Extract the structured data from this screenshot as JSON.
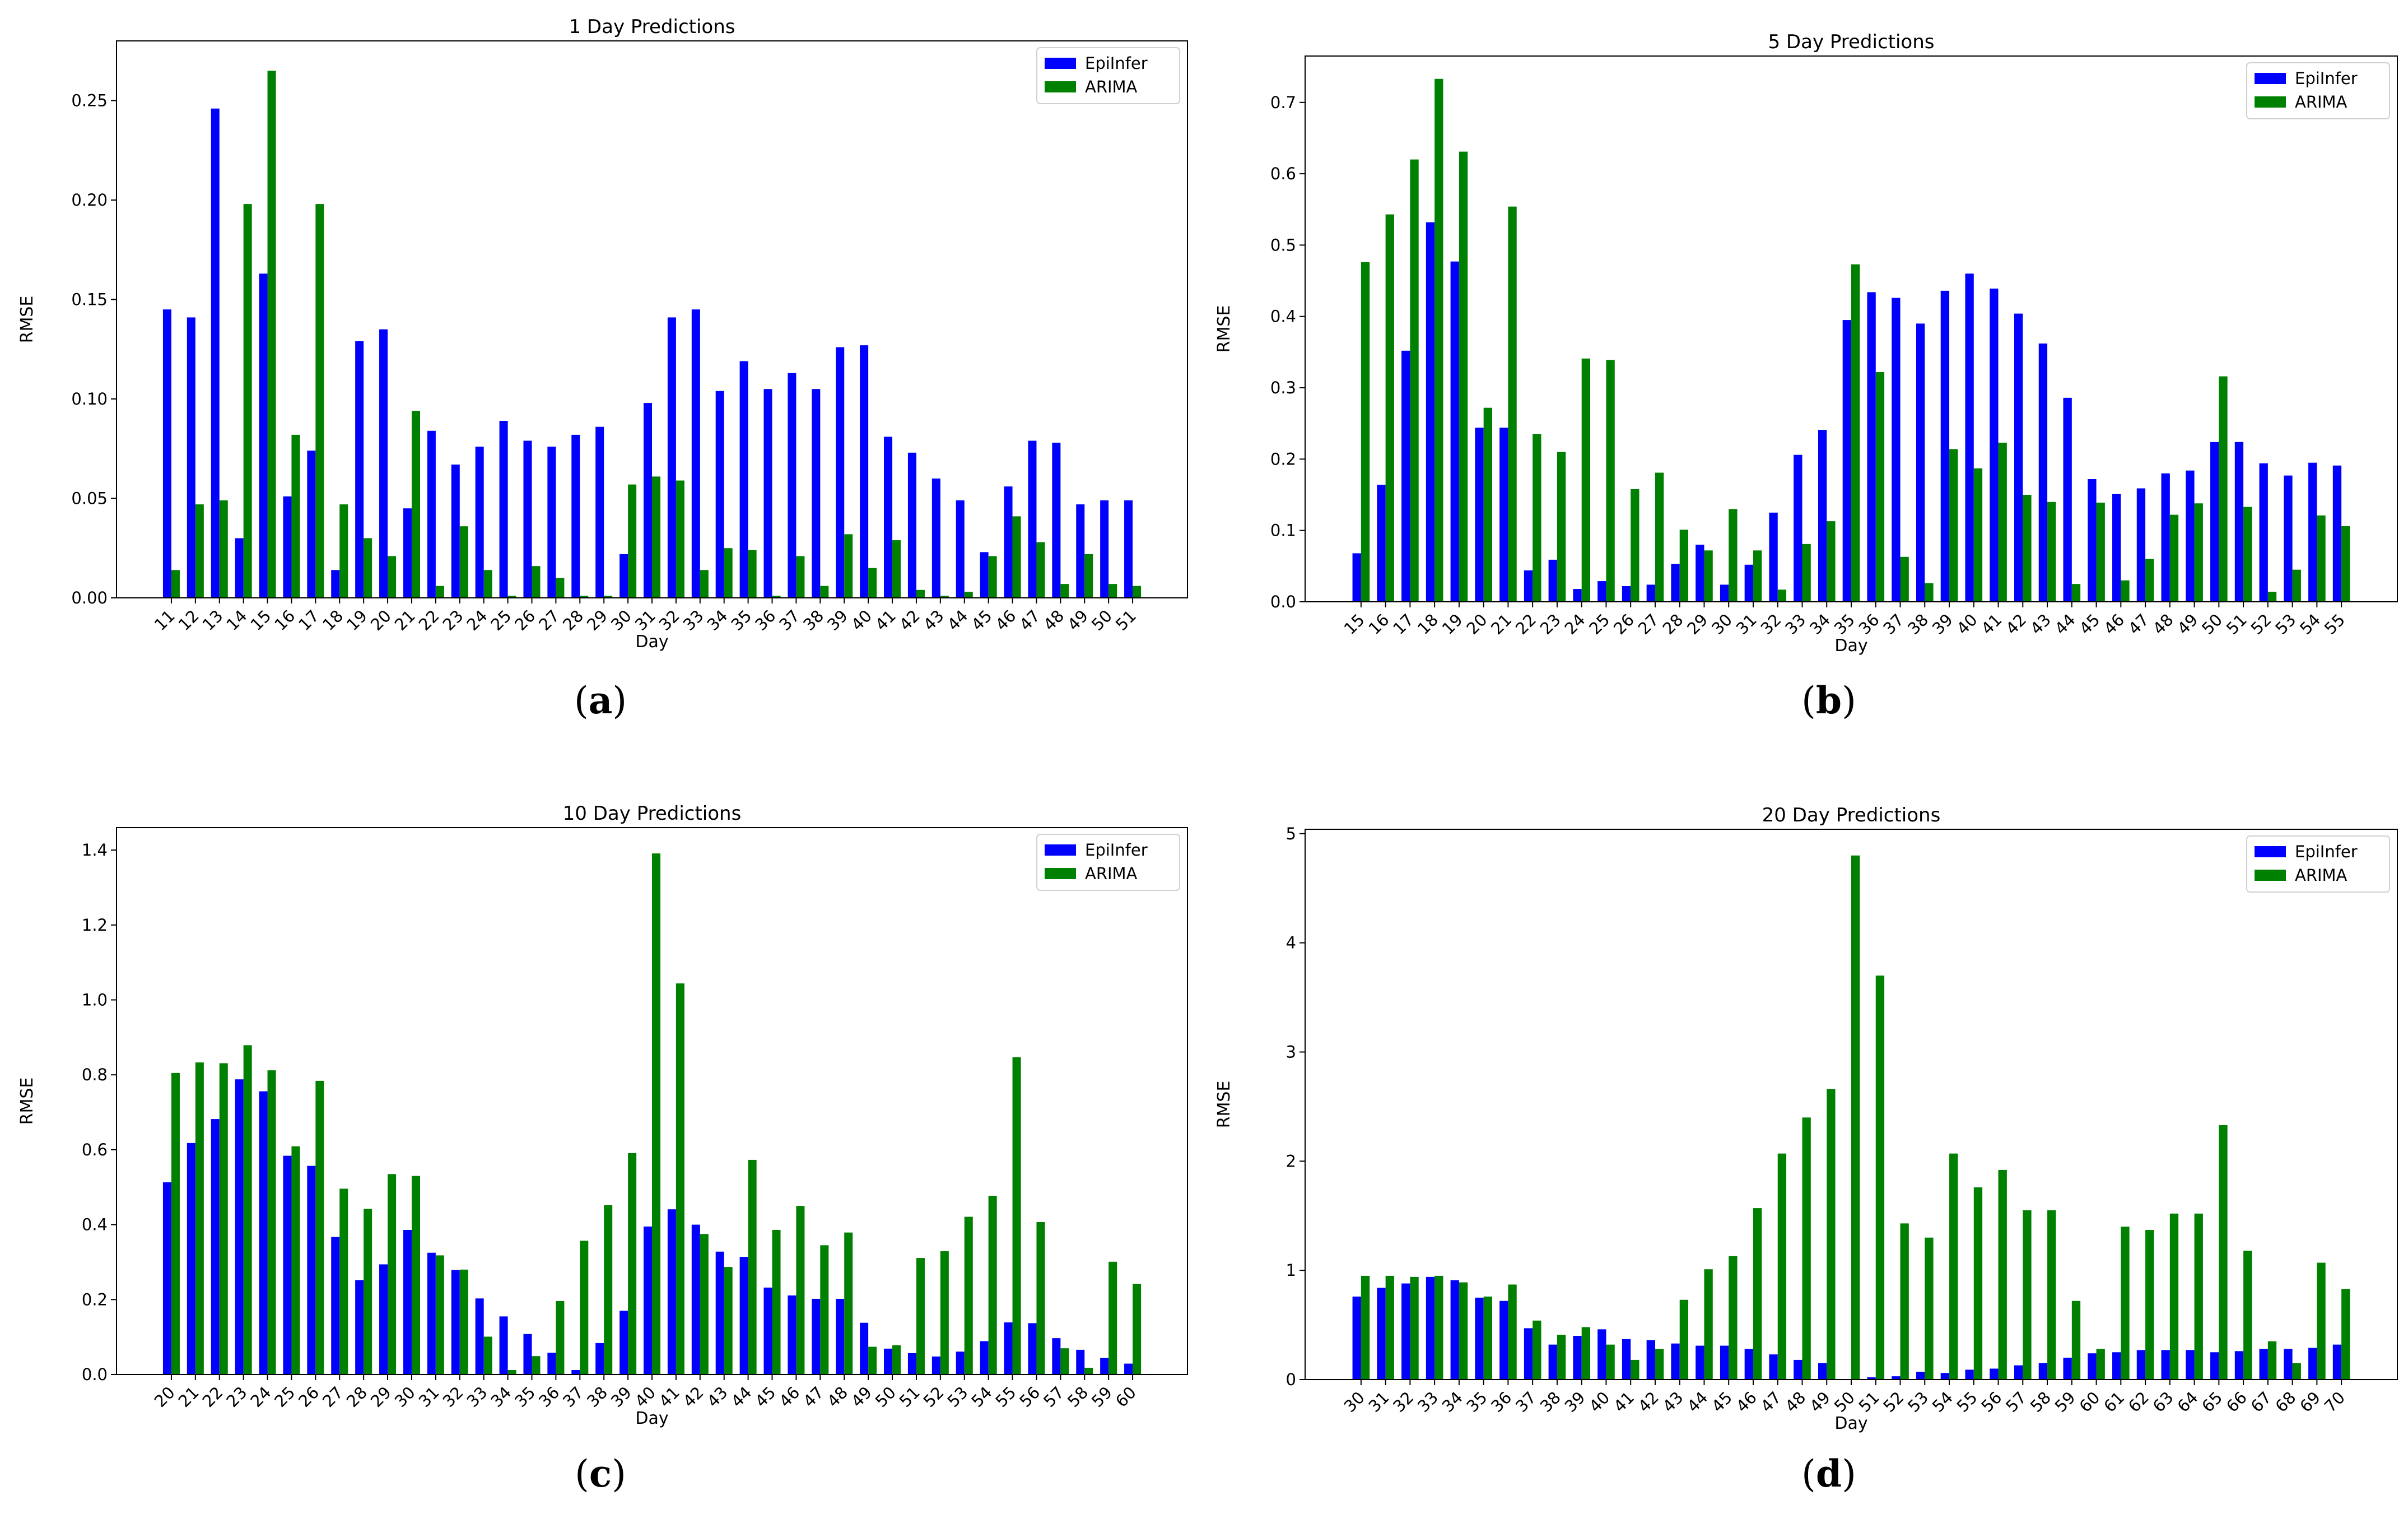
{
  "colors": {
    "epiinfer": "#0000ff",
    "arima": "#008000"
  },
  "chart_data": [
    {
      "type": "bar",
      "title": "1 Day Predictions",
      "xlabel": "Day",
      "ylabel": "RMSE",
      "ylim": [
        0,
        0.28
      ],
      "yticks": [
        "0.00",
        "0.05",
        "0.10",
        "0.15",
        "0.20",
        "0.25"
      ],
      "legend_position": "top-right",
      "subfigure_label": "a",
      "categories": [
        "11",
        "12",
        "13",
        "14",
        "15",
        "16",
        "17",
        "18",
        "19",
        "20",
        "21",
        "22",
        "23",
        "24",
        "25",
        "26",
        "27",
        "28",
        "29",
        "30",
        "31",
        "32",
        "33",
        "34",
        "35",
        "36",
        "37",
        "38",
        "39",
        "40",
        "41",
        "42",
        "43",
        "44",
        "45",
        "46",
        "47",
        "48",
        "49",
        "50",
        "51"
      ],
      "series": [
        {
          "name": "EpiInfer",
          "values": [
            0.145,
            0.141,
            0.246,
            0.03,
            0.163,
            0.051,
            0.074,
            0.014,
            0.129,
            0.135,
            0.045,
            0.084,
            0.067,
            0.076,
            0.089,
            0.079,
            0.076,
            0.082,
            0.086,
            0.022,
            0.098,
            0.141,
            0.145,
            0.104,
            0.119,
            0.105,
            0.113,
            0.105,
            0.126,
            0.127,
            0.081,
            0.073,
            0.06,
            0.049,
            0.023,
            0.056,
            0.079,
            0.078,
            0.047,
            0.049,
            0.049
          ]
        },
        {
          "name": "ARIMA",
          "values": [
            0.014,
            0.047,
            0.049,
            0.198,
            0.265,
            0.082,
            0.198,
            0.047,
            0.03,
            0.021,
            0.094,
            0.006,
            0.036,
            0.014,
            0.001,
            0.016,
            0.01,
            0.001,
            0.001,
            0.057,
            0.061,
            0.059,
            0.014,
            0.025,
            0.024,
            0.001,
            0.021,
            0.006,
            0.032,
            0.015,
            0.029,
            0.004,
            0.001,
            0.003,
            0.021,
            0.041,
            0.028,
            0.007,
            0.022,
            0.007,
            0.006
          ]
        }
      ]
    },
    {
      "type": "bar",
      "title": "5 Day Predictions",
      "xlabel": "Day",
      "ylabel": "RMSE",
      "ylim": [
        0,
        0.765
      ],
      "yticks": [
        "0.0",
        "0.1",
        "0.2",
        "0.3",
        "0.4",
        "0.5",
        "0.6",
        "0.7"
      ],
      "legend_position": "top-right",
      "subfigure_label": "b",
      "categories": [
        "15",
        "16",
        "17",
        "18",
        "19",
        "20",
        "21",
        "22",
        "23",
        "24",
        "25",
        "26",
        "27",
        "28",
        "29",
        "30",
        "31",
        "32",
        "33",
        "34",
        "35",
        "36",
        "37",
        "38",
        "39",
        "40",
        "41",
        "42",
        "43",
        "44",
        "45",
        "46",
        "47",
        "48",
        "49",
        "50",
        "51",
        "52",
        "53",
        "54",
        "55"
      ],
      "series": [
        {
          "name": "EpiInfer",
          "values": [
            0.068,
            0.164,
            0.352,
            0.532,
            0.477,
            0.244,
            0.244,
            0.044,
            0.059,
            0.018,
            0.029,
            0.022,
            0.024,
            0.053,
            0.08,
            0.024,
            0.052,
            0.125,
            0.206,
            0.241,
            0.395,
            0.434,
            0.426,
            0.39,
            0.436,
            0.46,
            0.439,
            0.404,
            0.362,
            0.286,
            0.172,
            0.151,
            0.159,
            0.18,
            0.184,
            0.224,
            0.224,
            0.194,
            0.177,
            0.195,
            0.191
          ]
        },
        {
          "name": "ARIMA",
          "values": [
            0.476,
            0.543,
            0.62,
            0.733,
            0.631,
            0.272,
            0.554,
            0.235,
            0.21,
            0.341,
            0.339,
            0.158,
            0.181,
            0.101,
            0.072,
            0.13,
            0.072,
            0.017,
            0.081,
            0.113,
            0.473,
            0.322,
            0.063,
            0.026,
            0.214,
            0.187,
            0.223,
            0.15,
            0.14,
            0.025,
            0.139,
            0.03,
            0.06,
            0.122,
            0.138,
            0.316,
            0.133,
            0.014,
            0.045,
            0.121,
            0.106
          ]
        }
      ]
    },
    {
      "type": "bar",
      "title": "10 Day Predictions",
      "xlabel": "Day",
      "ylabel": "RMSE",
      "ylim": [
        0,
        1.46
      ],
      "yticks": [
        "0.0",
        "0.2",
        "0.4",
        "0.6",
        "0.8",
        "1.0",
        "1.2",
        "1.4"
      ],
      "legend_position": "top-right",
      "subfigure_label": "c",
      "categories": [
        "20",
        "21",
        "22",
        "23",
        "24",
        "25",
        "26",
        "27",
        "28",
        "29",
        "30",
        "31",
        "32",
        "33",
        "34",
        "35",
        "36",
        "37",
        "38",
        "39",
        "40",
        "41",
        "42",
        "43",
        "44",
        "45",
        "46",
        "47",
        "48",
        "49",
        "50",
        "51",
        "52",
        "53",
        "54",
        "55",
        "56",
        "57",
        "58",
        "59",
        "60"
      ],
      "series": [
        {
          "name": "EpiInfer",
          "values": [
            0.513,
            0.618,
            0.682,
            0.788,
            0.756,
            0.584,
            0.557,
            0.367,
            0.252,
            0.294,
            0.386,
            0.325,
            0.279,
            0.203,
            0.155,
            0.108,
            0.058,
            0.012,
            0.084,
            0.17,
            0.395,
            0.441,
            0.4,
            0.328,
            0.314,
            0.232,
            0.211,
            0.202,
            0.202,
            0.138,
            0.069,
            0.057,
            0.048,
            0.061,
            0.089,
            0.139,
            0.137,
            0.097,
            0.066,
            0.044,
            0.029
          ]
        },
        {
          "name": "ARIMA",
          "values": [
            0.805,
            0.833,
            0.831,
            0.879,
            0.812,
            0.609,
            0.784,
            0.496,
            0.442,
            0.535,
            0.53,
            0.318,
            0.28,
            0.101,
            0.012,
            0.049,
            0.196,
            0.357,
            0.452,
            0.591,
            1.391,
            1.044,
            0.375,
            0.287,
            0.573,
            0.386,
            0.45,
            0.345,
            0.379,
            0.074,
            0.078,
            0.311,
            0.329,
            0.421,
            0.477,
            0.847,
            0.407,
            0.07,
            0.018,
            0.301,
            0.242
          ]
        }
      ]
    },
    {
      "type": "bar",
      "title": "20 Day Predictions",
      "xlabel": "Day",
      "ylabel": "RMSE",
      "ylim": [
        0,
        5.04
      ],
      "yticks": [
        "0",
        "1",
        "2",
        "3",
        "4",
        "5"
      ],
      "legend_position": "top-right",
      "subfigure_label": "d",
      "categories": [
        "30",
        "31",
        "32",
        "33",
        "34",
        "35",
        "36",
        "37",
        "38",
        "39",
        "40",
        "41",
        "42",
        "43",
        "44",
        "45",
        "46",
        "47",
        "48",
        "49",
        "50",
        "51",
        "52",
        "53",
        "54",
        "55",
        "56",
        "57",
        "58",
        "59",
        "60",
        "61",
        "62",
        "63",
        "64",
        "65",
        "66",
        "67",
        "68",
        "69",
        "70"
      ],
      "series": [
        {
          "name": "EpiInfer",
          "values": [
            0.76,
            0.84,
            0.88,
            0.94,
            0.91,
            0.75,
            0.72,
            0.47,
            0.32,
            0.4,
            0.46,
            0.37,
            0.36,
            0.33,
            0.31,
            0.31,
            0.28,
            0.23,
            0.18,
            0.15,
            0.0,
            0.02,
            0.03,
            0.07,
            0.06,
            0.09,
            0.1,
            0.13,
            0.15,
            0.2,
            0.24,
            0.25,
            0.27,
            0.27,
            0.27,
            0.25,
            0.26,
            0.28,
            0.28,
            0.29,
            0.32
          ]
        },
        {
          "name": "ARIMA",
          "values": [
            0.95,
            0.95,
            0.94,
            0.95,
            0.89,
            0.76,
            0.87,
            0.54,
            0.41,
            0.48,
            0.32,
            0.18,
            0.28,
            0.73,
            1.01,
            1.13,
            1.57,
            2.07,
            2.4,
            2.66,
            4.8,
            3.7,
            1.43,
            1.3,
            2.07,
            1.76,
            1.92,
            1.55,
            1.55,
            0.72,
            0.28,
            1.4,
            1.37,
            1.52,
            1.52,
            2.33,
            1.18,
            0.35,
            0.15,
            1.07,
            0.83
          ]
        }
      ]
    }
  ]
}
